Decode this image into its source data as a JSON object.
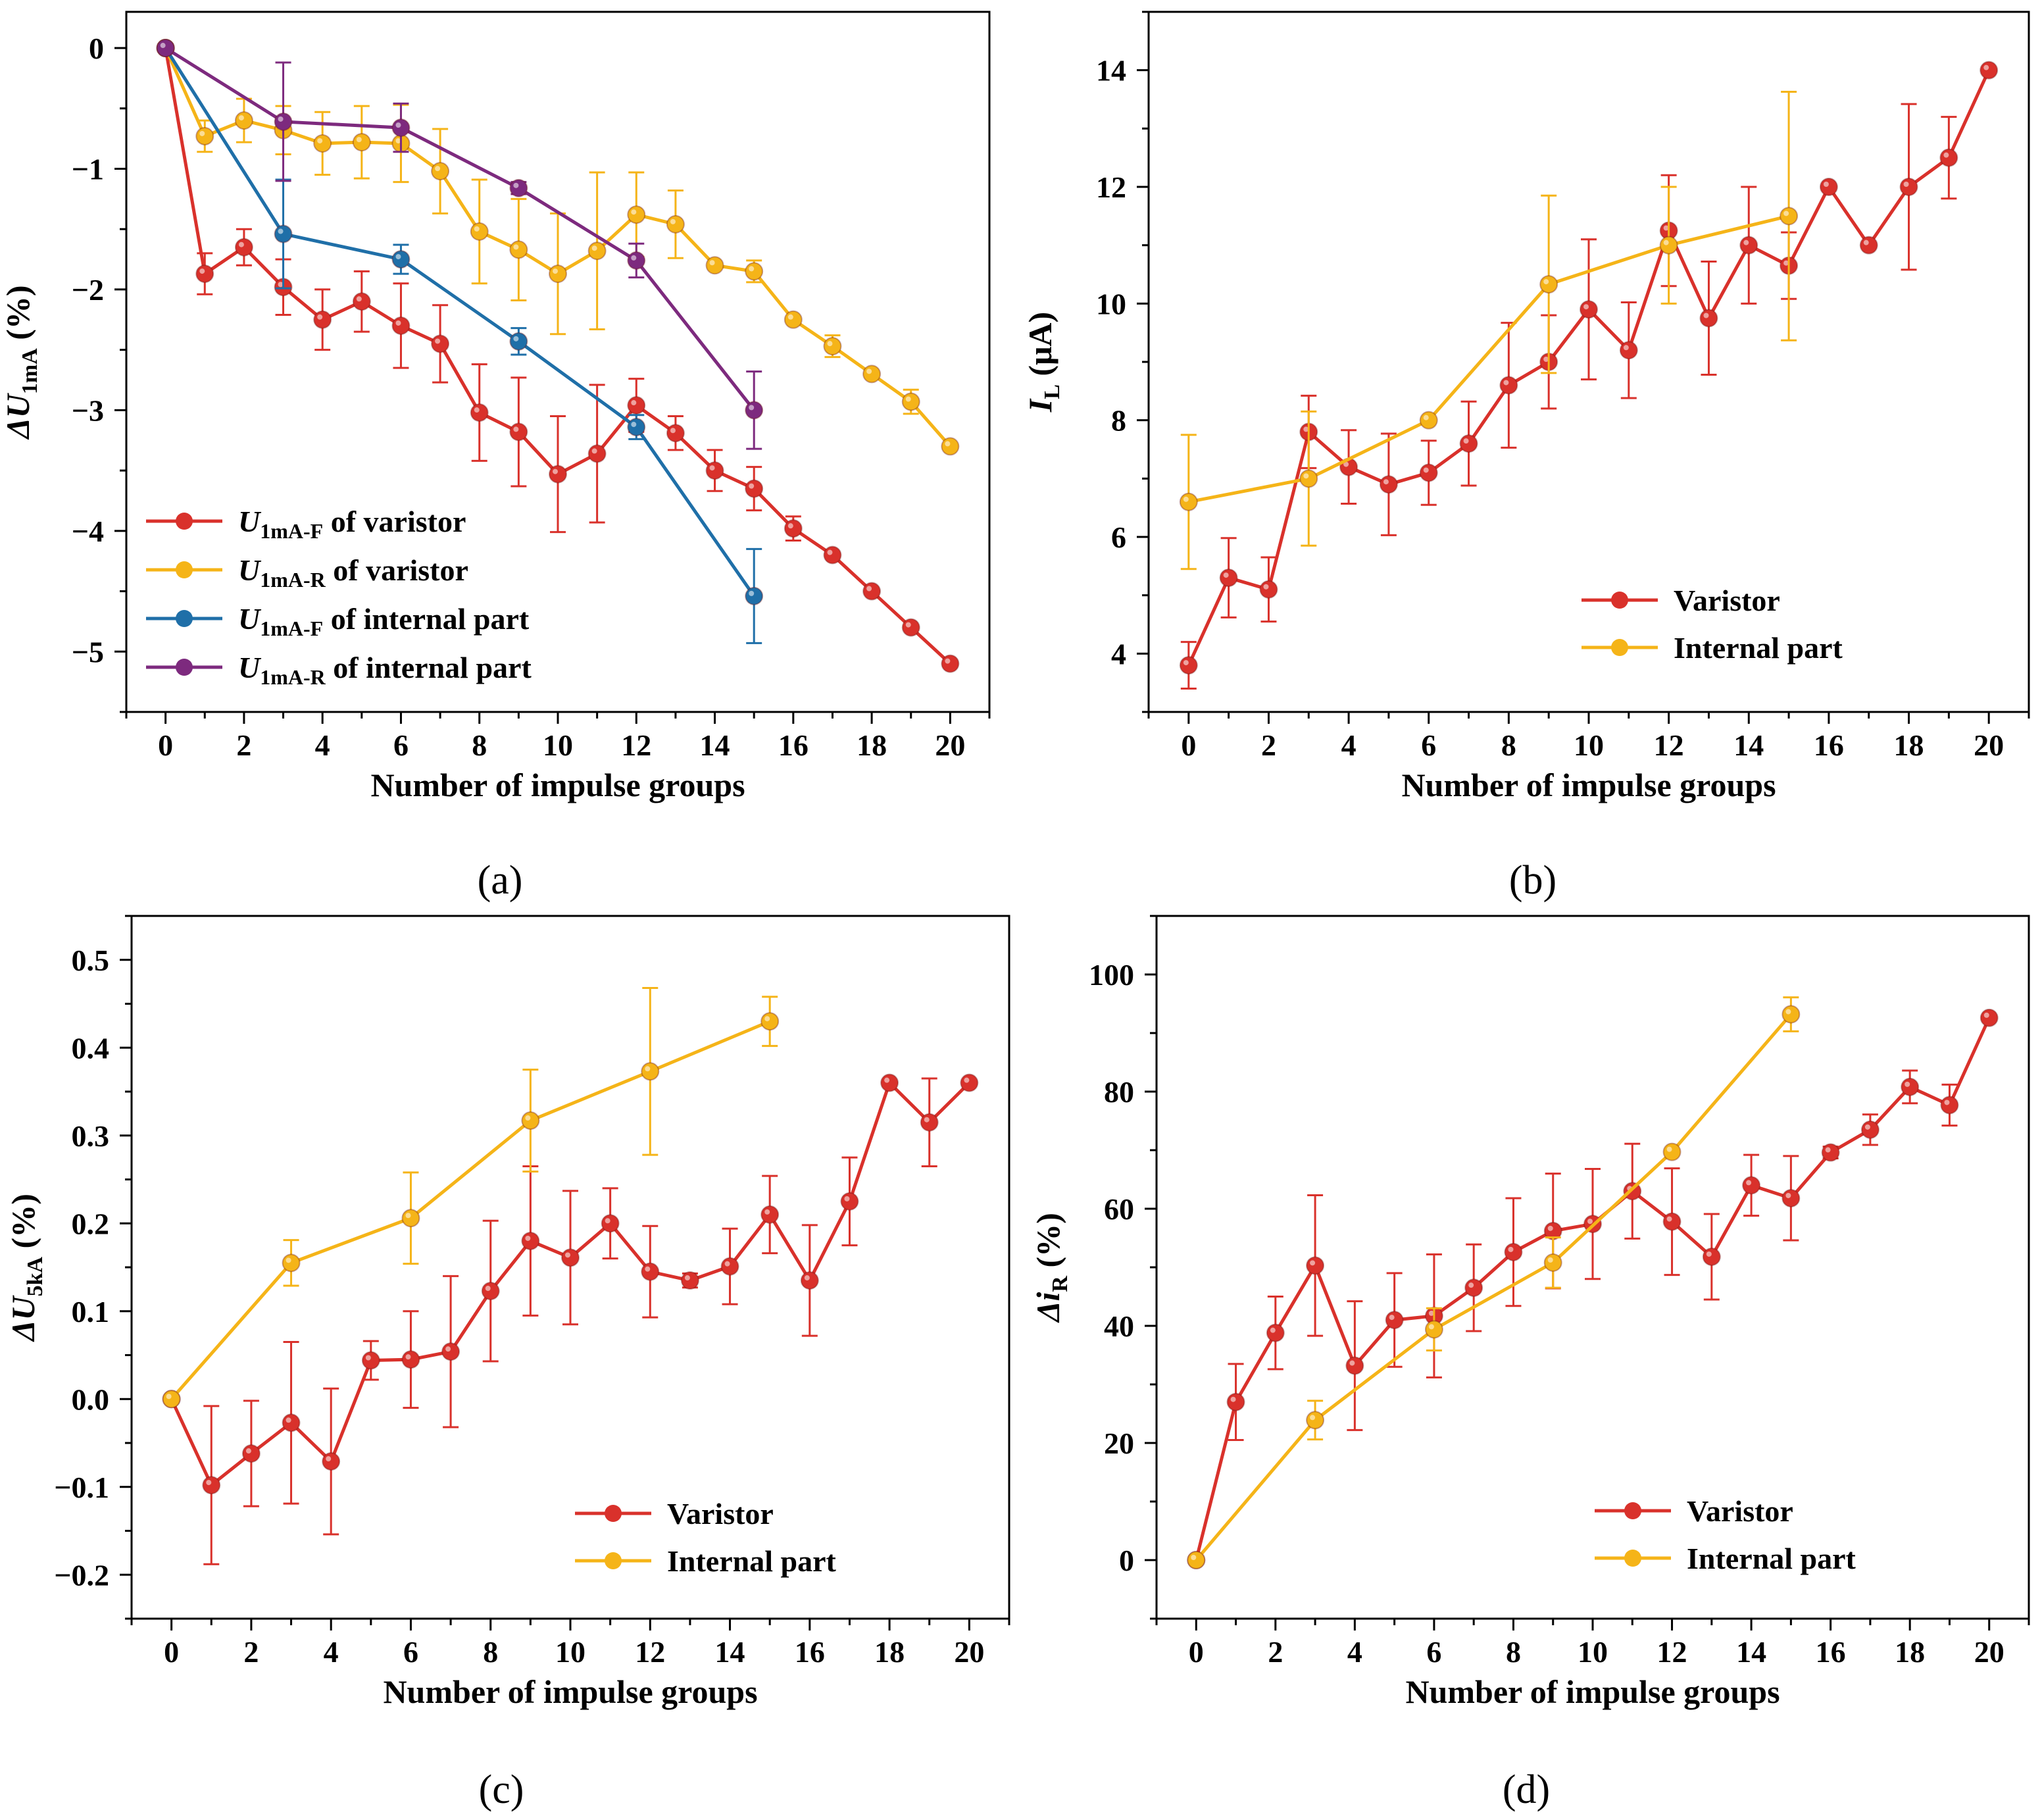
{
  "colors": {
    "red": "#d9312b",
    "orange": "#f5b418",
    "blue": "#1f6fa8",
    "purple": "#7d2a7e"
  },
  "chart_data": [
    {
      "panel": "a",
      "label": "(a)",
      "type": "line",
      "xlabel": "Number of impulse groups",
      "ylabel": {
        "prefix": "ΔU",
        "sub": "1mA",
        "suffix": " (%)"
      },
      "xlim": [
        -1,
        21
      ],
      "ylim": [
        -5.5,
        0.3
      ],
      "xticks": [
        0,
        2,
        4,
        6,
        8,
        10,
        12,
        14,
        16,
        18,
        20
      ],
      "yticks": [
        0,
        -1,
        -2,
        -3,
        -4,
        -5
      ],
      "ytick_labels": [
        "0",
        "−1",
        "−2",
        "−3",
        "−4",
        "−5"
      ],
      "legend_position": "bottom-left",
      "series": [
        {
          "name": {
            "main": "U",
            "sub": "1mA-F",
            "rest": " of varistor"
          },
          "color": "#d9312b",
          "x": [
            0,
            1,
            2,
            3,
            4,
            5,
            6,
            7,
            8,
            9,
            10,
            11,
            12,
            13,
            14,
            15,
            16,
            17,
            18,
            19,
            20
          ],
          "y": [
            0,
            -1.87,
            -1.65,
            -1.98,
            -2.25,
            -2.1,
            -2.3,
            -2.45,
            -3.02,
            -3.18,
            -3.53,
            -3.36,
            -2.96,
            -3.19,
            -3.5,
            -3.65,
            -3.98,
            -4.2,
            -4.5,
            -4.8,
            -5.1
          ],
          "err": [
            0,
            0.17,
            0.15,
            0.23,
            0.25,
            0.25,
            0.35,
            0.32,
            0.4,
            0.45,
            0.48,
            0.57,
            0.22,
            0.14,
            0.17,
            0.18,
            0.1,
            0,
            0,
            0,
            0
          ]
        },
        {
          "name": {
            "main": "U",
            "sub": "1mA-R",
            "rest": " of varistor"
          },
          "color": "#f5b418",
          "x": [
            0,
            1,
            2,
            3,
            4,
            5,
            6,
            7,
            8,
            9,
            10,
            11,
            12,
            13,
            14,
            15,
            16,
            17,
            18,
            19,
            20
          ],
          "y": [
            0,
            -0.73,
            -0.6,
            -0.68,
            -0.79,
            -0.78,
            -0.79,
            -1.02,
            -1.52,
            -1.67,
            -1.87,
            -1.68,
            -1.38,
            -1.46,
            -1.8,
            -1.85,
            -2.25,
            -2.47,
            -2.7,
            -2.93,
            -3.3
          ],
          "err": [
            0,
            0.13,
            0.18,
            0.2,
            0.26,
            0.3,
            0.32,
            0.35,
            0.43,
            0.42,
            0.5,
            0.65,
            0.35,
            0.28,
            0,
            0.09,
            0,
            0.09,
            0,
            0.1,
            0
          ]
        },
        {
          "name": {
            "main": "U",
            "sub": "1mA-F",
            "rest": " of internal part"
          },
          "color": "#1f6fa8",
          "x": [
            0,
            3,
            6,
            9,
            12,
            15
          ],
          "y": [
            0,
            -1.54,
            -1.75,
            -2.43,
            -3.14,
            -4.54
          ],
          "err": [
            0,
            0.45,
            0.12,
            0.11,
            0.1,
            0.39
          ]
        },
        {
          "name": {
            "main": "U",
            "sub": "1mA-R",
            "rest": " of internal part"
          },
          "color": "#7d2a7e",
          "x": [
            0,
            3,
            6,
            9,
            12,
            15
          ],
          "y": [
            0,
            -0.61,
            -0.66,
            -1.16,
            -1.76,
            -3.0
          ],
          "err": [
            0,
            0.49,
            0.2,
            0.05,
            0.14,
            0.32
          ]
        }
      ]
    },
    {
      "panel": "b",
      "label": "(b)",
      "type": "line",
      "xlabel": "Number of impulse groups",
      "ylabel": {
        "prefix": "I",
        "sub": "L",
        "suffix": " (μA)"
      },
      "xlim": [
        -1,
        21
      ],
      "ylim": [
        3,
        15
      ],
      "xticks": [
        0,
        2,
        4,
        6,
        8,
        10,
        12,
        14,
        16,
        18,
        20
      ],
      "yticks": [
        4,
        6,
        8,
        10,
        12,
        14
      ],
      "ytick_labels": [
        "4",
        "6",
        "8",
        "10",
        "12",
        "14"
      ],
      "legend_position": "bottom-right",
      "series": [
        {
          "name": "Varistor",
          "color": "#d9312b",
          "x": [
            0,
            1,
            2,
            3,
            4,
            5,
            6,
            7,
            8,
            9,
            10,
            11,
            12,
            13,
            14,
            15,
            16,
            17,
            18,
            19,
            20
          ],
          "y": [
            3.8,
            5.3,
            5.1,
            7.8,
            7.2,
            6.9,
            7.1,
            7.6,
            8.6,
            9.0,
            9.9,
            9.2,
            11.25,
            9.75,
            11.0,
            10.65,
            12.0,
            11.0,
            12.0,
            12.5,
            14.0
          ],
          "err": [
            0.4,
            0.68,
            0.55,
            0.62,
            0.63,
            0.87,
            0.55,
            0.72,
            1.07,
            0.8,
            1.2,
            0.82,
            0.95,
            0.97,
            1.0,
            0.57,
            0,
            0,
            1.42,
            0.7,
            0
          ]
        },
        {
          "name": "Internal part",
          "color": "#f5b418",
          "x": [
            0,
            3,
            6,
            9,
            12,
            15
          ],
          "y": [
            6.6,
            7.0,
            8.0,
            10.33,
            11.0,
            11.5
          ],
          "err": [
            1.15,
            1.15,
            0,
            1.52,
            1.0,
            2.13
          ]
        }
      ]
    },
    {
      "panel": "c",
      "label": "(c)",
      "type": "line",
      "xlabel": "Number of impulse groups",
      "ylabel": {
        "prefix": "ΔU",
        "sub": "5kA",
        "suffix": " (%)"
      },
      "xlim": [
        -1,
        21
      ],
      "ylim": [
        -0.25,
        0.55
      ],
      "xticks": [
        0,
        2,
        4,
        6,
        8,
        10,
        12,
        14,
        16,
        18,
        20
      ],
      "yticks": [
        -0.2,
        -0.1,
        0.0,
        0.1,
        0.2,
        0.3,
        0.4,
        0.5
      ],
      "ytick_labels": [
        "−0.2",
        "−0.1",
        "0.0",
        "0.1",
        "0.2",
        "0.3",
        "0.4",
        "0.5"
      ],
      "legend_position": "bottom-right",
      "series": [
        {
          "name": "Varistor",
          "color": "#d9312b",
          "x": [
            0,
            1,
            2,
            3,
            4,
            5,
            6,
            7,
            8,
            9,
            10,
            11,
            12,
            13,
            14,
            15,
            16,
            17,
            18,
            19,
            20
          ],
          "y": [
            0,
            -0.098,
            -0.062,
            -0.027,
            -0.071,
            0.044,
            0.045,
            0.054,
            0.123,
            0.18,
            0.161,
            0.2,
            0.145,
            0.135,
            0.151,
            0.21,
            0.135,
            0.225,
            0.36,
            0.315,
            0.36
          ],
          "err": [
            0,
            0.09,
            0.06,
            0.092,
            0.083,
            0.022,
            0.055,
            0.086,
            0.08,
            0.085,
            0.076,
            0.04,
            0.052,
            0.008,
            0.043,
            0.044,
            0.063,
            0.05,
            0,
            0.05,
            0
          ]
        },
        {
          "name": "Internal part",
          "color": "#f5b418",
          "x": [
            0,
            3,
            6,
            9,
            12,
            15
          ],
          "y": [
            0,
            0.155,
            0.206,
            0.317,
            0.373,
            0.43
          ],
          "err": [
            0,
            0.026,
            0.052,
            0.058,
            0.095,
            0.028
          ]
        }
      ]
    },
    {
      "panel": "d",
      "label": "(d)",
      "type": "line",
      "xlabel": "Number of impulse groups",
      "ylabel": {
        "prefix": "Δi",
        "sub": "R",
        "suffix": " (%)"
      },
      "xlim": [
        -1,
        21
      ],
      "ylim": [
        -10,
        110
      ],
      "xticks": [
        0,
        2,
        4,
        6,
        8,
        10,
        12,
        14,
        16,
        18,
        20
      ],
      "yticks": [
        0,
        20,
        40,
        60,
        80,
        100
      ],
      "ytick_labels": [
        "0",
        "20",
        "40",
        "60",
        "80",
        "100"
      ],
      "legend_position": "bottom-right",
      "series": [
        {
          "name": "Varistor",
          "color": "#d9312b",
          "x": [
            0,
            1,
            2,
            3,
            4,
            5,
            6,
            7,
            8,
            9,
            10,
            11,
            12,
            13,
            14,
            15,
            16,
            17,
            18,
            19,
            20
          ],
          "y": [
            0,
            27,
            38.8,
            50.3,
            33.2,
            41,
            41.7,
            46.5,
            52.6,
            56.2,
            57.4,
            63,
            57.8,
            51.8,
            64,
            61.8,
            69.6,
            73.5,
            80.8,
            77.7,
            92.6
          ],
          "err": [
            0,
            6.5,
            6.2,
            12,
            11,
            8,
            10.5,
            7.4,
            9.2,
            9.8,
            9.4,
            8.1,
            9.1,
            7.3,
            5.2,
            7.2,
            1,
            2.6,
            2.8,
            3.5,
            0
          ]
        },
        {
          "name": "Internal part",
          "color": "#f5b418",
          "x": [
            0,
            3,
            6,
            9,
            12,
            15
          ],
          "y": [
            0,
            23.9,
            39.4,
            50.8,
            69.7,
            93.2
          ],
          "err": [
            0,
            3.3,
            3.6,
            4.3,
            0,
            2.9
          ]
        }
      ]
    }
  ]
}
